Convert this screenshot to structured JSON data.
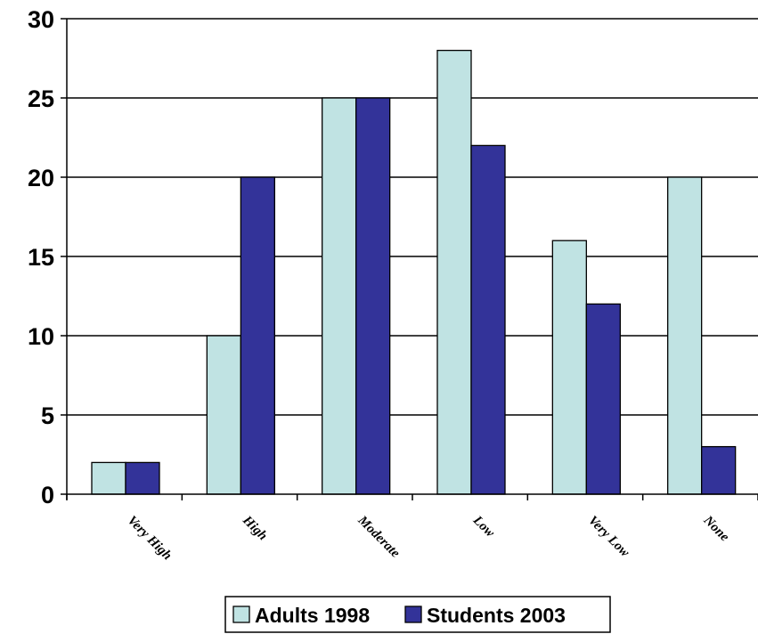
{
  "chart_data": {
    "type": "bar",
    "title": "",
    "xlabel": "",
    "ylabel": "",
    "categories": [
      "Very High",
      "High",
      "Moderate",
      "Low",
      "Very Low",
      "None"
    ],
    "series": [
      {
        "name": "Adults 1998",
        "values": [
          2,
          10,
          25,
          28,
          16,
          20
        ],
        "color": "#c0e3e3"
      },
      {
        "name": "Students 2003",
        "values": [
          2,
          20,
          25,
          22,
          12,
          3
        ],
        "color": "#333399"
      }
    ],
    "ylim": [
      0,
      30
    ],
    "yticks": [
      0,
      5,
      10,
      15,
      20,
      25,
      30
    ],
    "grid": true,
    "legend": "bottom"
  }
}
